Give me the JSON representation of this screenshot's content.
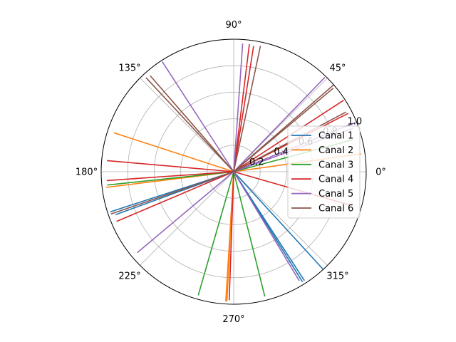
{
  "chart_data": {
    "type": "line",
    "projection": "polar",
    "title": "",
    "r_range": [
      0,
      1.0
    ],
    "r_ticks": [
      "0.2",
      "0.4",
      "0.6",
      "0.8",
      "1.0"
    ],
    "theta_ticks": [
      "0°",
      "45°",
      "90°",
      "135°",
      "180°",
      "225°",
      "270°",
      "315°"
    ],
    "grid": true,
    "legend": {
      "placement": "right"
    },
    "series": [
      {
        "name": "Canal 1",
        "color": "#1f77b4",
        "segments": [
          [
            312.5,
            1.0
          ],
          [
            303,
            0.98
          ],
          [
            302,
            0.98
          ],
          [
            198,
            0.98
          ],
          [
            200,
            0.95
          ]
        ]
      },
      {
        "name": "Canal 2",
        "color": "#ff7f0e",
        "segments": [
          [
            267,
            0.98
          ],
          [
            266.5,
            0.98
          ],
          [
            162,
            0.95
          ],
          [
            187,
            0.97
          ],
          [
            8,
            0.97
          ]
        ]
      },
      {
        "name": "Canal 3",
        "color": "#2ca02c",
        "segments": [
          [
            254,
            0.97
          ],
          [
            284,
            0.97
          ],
          [
            15,
            0.93
          ],
          [
            186,
            0.96
          ]
        ]
      },
      {
        "name": "Canal 4",
        "color": "#d62728",
        "segments": [
          [
            83,
            0.97
          ],
          [
            81,
            0.96
          ],
          [
            33,
            0.99
          ],
          [
            27,
            0.97
          ],
          [
            175,
            0.96
          ],
          [
            184,
            0.96
          ],
          [
            203,
            0.96
          ],
          [
            344,
            0.93
          ],
          [
            268,
            0.97
          ]
        ]
      },
      {
        "name": "Canal 5",
        "color": "#9467bd",
        "segments": [
          [
            86,
            0.97
          ],
          [
            123,
            0.99
          ],
          [
            46,
            0.99
          ],
          [
            301,
            0.96
          ],
          [
            220,
            0.95
          ],
          [
            22,
            0.99
          ],
          [
            20,
            0.96
          ]
        ]
      },
      {
        "name": "Canal 6",
        "color": "#8c564b",
        "segments": [
          [
            78,
            0.97
          ],
          [
            133,
            0.97
          ],
          [
            131,
            0.96
          ],
          [
            41,
            1.0
          ],
          [
            40,
            0.98
          ],
          [
            28,
            0.96
          ],
          [
            199,
            0.98
          ]
        ]
      }
    ]
  }
}
